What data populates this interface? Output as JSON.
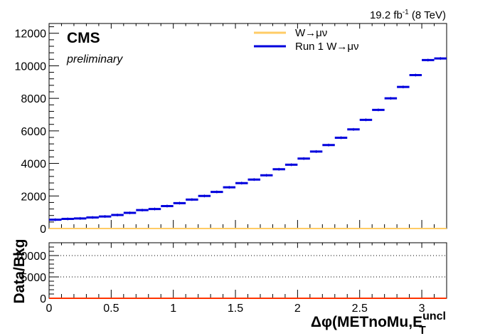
{
  "header": {
    "lumi_value": "19.2 fb",
    "lumi_exp": "-1",
    "energy": " (8 TeV)"
  },
  "labels": {
    "experiment": "CMS",
    "status": "preliminary",
    "ratio_ylabel": "Data/Bkg",
    "xlabel_main": "Δφ(METnoMu,E",
    "xlabel_sup": "uncl",
    "xlabel_sub": "T"
  },
  "legend": [
    {
      "label": "W→μν",
      "color": "#ffcc66"
    },
    {
      "label": "Run 1 W→μν",
      "color": "#0000dd"
    }
  ],
  "chart_data": [
    {
      "type": "line",
      "xlim": [
        0,
        3.2
      ],
      "ylim": [
        0,
        12600
      ],
      "yticks": [
        0,
        2000,
        4000,
        6000,
        8000,
        10000,
        12000
      ],
      "bin_width": 0.1,
      "series": [
        {
          "name": "W→μν",
          "color": "#ffcc66",
          "x": [
            0.05,
            0.15,
            0.25,
            0.35,
            0.45,
            0.55,
            0.65,
            0.75,
            0.85,
            0.95,
            1.05,
            1.15,
            1.25,
            1.35,
            1.45,
            1.55,
            1.65,
            1.75,
            1.85,
            1.95,
            2.05,
            2.15,
            2.25,
            2.35,
            2.45,
            2.55,
            2.65,
            2.75,
            2.85,
            2.95,
            3.05,
            3.15
          ],
          "values": [
            0,
            0,
            0,
            0,
            0,
            0,
            0,
            0,
            0,
            0,
            0,
            0,
            0,
            0,
            0,
            0,
            0,
            0,
            0,
            0,
            0,
            0,
            0,
            0,
            0,
            0,
            0,
            0,
            0,
            0,
            0,
            0
          ]
        },
        {
          "name": "Run 1 W→μν",
          "color": "#0000dd",
          "x": [
            0.05,
            0.15,
            0.25,
            0.35,
            0.45,
            0.55,
            0.65,
            0.75,
            0.85,
            0.95,
            1.05,
            1.15,
            1.25,
            1.35,
            1.45,
            1.55,
            1.65,
            1.75,
            1.85,
            1.95,
            2.05,
            2.15,
            2.25,
            2.35,
            2.45,
            2.55,
            2.65,
            2.75,
            2.85,
            2.95,
            3.05,
            3.15
          ],
          "values": [
            540,
            590,
            620,
            680,
            740,
            830,
            960,
            1130,
            1200,
            1380,
            1560,
            1780,
            2000,
            2250,
            2530,
            2790,
            3010,
            3270,
            3640,
            3920,
            4300,
            4730,
            5130,
            5580,
            6090,
            6680,
            7290,
            8000,
            8700,
            9430,
            10350,
            10450
          ]
        }
      ]
    },
    {
      "type": "line",
      "xlim": [
        0,
        3.2
      ],
      "ylim": [
        0,
        13000
      ],
      "yticks": [
        0,
        5000,
        10000
      ],
      "xticks": [
        0,
        0.5,
        1,
        1.5,
        2,
        2.5,
        3
      ],
      "xtick_labels": [
        "0",
        "0.5",
        "1",
        "1.5",
        "2",
        "2.5",
        "3"
      ],
      "gridlines_y": [
        5000,
        10000
      ],
      "series": [
        {
          "color": "#ff3300",
          "x": [
            0,
            3.2
          ],
          "values": [
            0,
            0
          ]
        }
      ]
    }
  ]
}
